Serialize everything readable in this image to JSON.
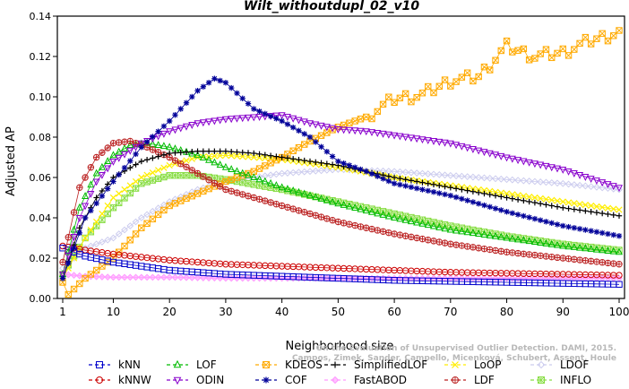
{
  "chart_data": {
    "type": "line",
    "title": "Wilt_withoutdupl_02_v10",
    "xlabel": "Neighborhood size",
    "ylabel": "Adjusted AP",
    "xlim": [
      0,
      100
    ],
    "ylim": [
      0,
      0.14
    ],
    "x_ticks": [
      1,
      10,
      20,
      30,
      40,
      50,
      60,
      70,
      80,
      90,
      100
    ],
    "y_ticks": [
      0.0,
      0.02,
      0.04,
      0.06,
      0.08,
      0.1,
      0.12,
      0.14
    ],
    "y_tick_labels": [
      "0.00",
      "0.02",
      "0.04",
      "0.06",
      "0.08",
      "0.10",
      "0.12",
      "0.14"
    ],
    "x_tick_labels": [
      "1",
      "10",
      "20",
      "30",
      "40",
      "50",
      "60",
      "70",
      "80",
      "90",
      "100"
    ],
    "grid": false,
    "legend_position": "bottom",
    "watermark": "Campos, Zimek, Sander, Campello, Micenková, Schubert, Assent, Houle: On the Evaluation of Unsupervised Outlier Detection. DAMI, 2015.",
    "watermark_lines": [
      "On the Evaluation of Unsupervised Outlier Detection. DAMI, 2015.",
      "Campos, Zimek, Sander, Campello, Micenková, Schubert, Assent, Houle"
    ],
    "series": [
      {
        "name": "kNN",
        "color": "#0000cc",
        "marker": "square",
        "points": [
          [
            1,
            0.025
          ],
          [
            5,
            0.021
          ],
          [
            10,
            0.018
          ],
          [
            20,
            0.014
          ],
          [
            30,
            0.012
          ],
          [
            40,
            0.011
          ],
          [
            50,
            0.01
          ],
          [
            60,
            0.009
          ],
          [
            70,
            0.0085
          ],
          [
            80,
            0.008
          ],
          [
            90,
            0.0075
          ],
          [
            100,
            0.007
          ]
        ]
      },
      {
        "name": "kNNW",
        "color": "#cc0000",
        "marker": "circle",
        "points": [
          [
            1,
            0.026
          ],
          [
            5,
            0.024
          ],
          [
            10,
            0.022
          ],
          [
            20,
            0.019
          ],
          [
            30,
            0.017
          ],
          [
            40,
            0.016
          ],
          [
            50,
            0.015
          ],
          [
            60,
            0.014
          ],
          [
            70,
            0.013
          ],
          [
            80,
            0.0125
          ],
          [
            90,
            0.012
          ],
          [
            100,
            0.0115
          ]
        ]
      },
      {
        "name": "LOF",
        "color": "#00bb00",
        "marker": "triangle-up",
        "points": [
          [
            1,
            0.012
          ],
          [
            4,
            0.045
          ],
          [
            7,
            0.062
          ],
          [
            10,
            0.071
          ],
          [
            13,
            0.076
          ],
          [
            16,
            0.077
          ],
          [
            20,
            0.075
          ],
          [
            25,
            0.071
          ],
          [
            30,
            0.065
          ],
          [
            40,
            0.055
          ],
          [
            50,
            0.047
          ],
          [
            60,
            0.04
          ],
          [
            70,
            0.034
          ],
          [
            80,
            0.03
          ],
          [
            90,
            0.026
          ],
          [
            100,
            0.023
          ]
        ]
      },
      {
        "name": "ODIN",
        "color": "#8800cc",
        "marker": "triangle-down",
        "points": [
          [
            1,
            0.012
          ],
          [
            4,
            0.04
          ],
          [
            7,
            0.058
          ],
          [
            10,
            0.068
          ],
          [
            15,
            0.077
          ],
          [
            20,
            0.083
          ],
          [
            25,
            0.087
          ],
          [
            30,
            0.089
          ],
          [
            35,
            0.09
          ],
          [
            40,
            0.091
          ],
          [
            45,
            0.087
          ],
          [
            50,
            0.084
          ],
          [
            55,
            0.083
          ],
          [
            60,
            0.081
          ],
          [
            70,
            0.077
          ],
          [
            80,
            0.07
          ],
          [
            90,
            0.064
          ],
          [
            100,
            0.055
          ]
        ]
      },
      {
        "name": "KDEOS",
        "color": "#ffaa00",
        "marker": "square-x",
        "points": [
          [
            1,
            0.008
          ],
          [
            2,
            0.002
          ],
          [
            5,
            0.01
          ],
          [
            10,
            0.02
          ],
          [
            15,
            0.035
          ],
          [
            20,
            0.046
          ],
          [
            25,
            0.052
          ],
          [
            30,
            0.058
          ],
          [
            35,
            0.063
          ],
          [
            40,
            0.07
          ],
          [
            45,
            0.078
          ],
          [
            50,
            0.085
          ],
          [
            55,
            0.09
          ],
          [
            60,
            0.099
          ],
          [
            65,
            0.101
          ],
          [
            70,
            0.108
          ],
          [
            75,
            0.11
          ],
          [
            80,
            0.125
          ],
          [
            85,
            0.12
          ],
          [
            90,
            0.122
          ],
          [
            95,
            0.128
          ],
          [
            100,
            0.132
          ]
        ]
      },
      {
        "name": "COF",
        "color": "#000099",
        "marker": "star",
        "points": [
          [
            1,
            0.01
          ],
          [
            5,
            0.04
          ],
          [
            10,
            0.058
          ],
          [
            15,
            0.075
          ],
          [
            20,
            0.088
          ],
          [
            25,
            0.103
          ],
          [
            28,
            0.109
          ],
          [
            30,
            0.107
          ],
          [
            35,
            0.094
          ],
          [
            40,
            0.088
          ],
          [
            45,
            0.08
          ],
          [
            50,
            0.068
          ],
          [
            55,
            0.063
          ],
          [
            60,
            0.057
          ],
          [
            70,
            0.051
          ],
          [
            80,
            0.043
          ],
          [
            90,
            0.036
          ],
          [
            100,
            0.031
          ]
        ]
      },
      {
        "name": "SimplifiedLOF",
        "color": "#000000",
        "marker": "plus",
        "points": [
          [
            1,
            0.01
          ],
          [
            4,
            0.035
          ],
          [
            7,
            0.05
          ],
          [
            10,
            0.06
          ],
          [
            15,
            0.068
          ],
          [
            20,
            0.072
          ],
          [
            25,
            0.073
          ],
          [
            30,
            0.073
          ],
          [
            35,
            0.072
          ],
          [
            40,
            0.07
          ],
          [
            50,
            0.066
          ],
          [
            60,
            0.06
          ],
          [
            70,
            0.055
          ],
          [
            80,
            0.05
          ],
          [
            90,
            0.045
          ],
          [
            100,
            0.041
          ]
        ]
      },
      {
        "name": "FastABOD",
        "color": "#ff99ff",
        "marker": "diamond",
        "points": [
          [
            1,
            0.012
          ],
          [
            5,
            0.011
          ],
          [
            10,
            0.0105
          ],
          [
            20,
            0.0105
          ],
          [
            30,
            0.01
          ],
          [
            40,
            0.01
          ],
          [
            50,
            0.01
          ],
          [
            60,
            0.01
          ],
          [
            70,
            0.01
          ],
          [
            80,
            0.01
          ],
          [
            90,
            0.01
          ],
          [
            100,
            0.01
          ]
        ]
      },
      {
        "name": "LoOP",
        "color": "#ffee00",
        "marker": "x",
        "points": [
          [
            1,
            0.01
          ],
          [
            5,
            0.03
          ],
          [
            10,
            0.05
          ],
          [
            15,
            0.06
          ],
          [
            20,
            0.066
          ],
          [
            25,
            0.07
          ],
          [
            30,
            0.071
          ],
          [
            40,
            0.069
          ],
          [
            50,
            0.065
          ],
          [
            60,
            0.06
          ],
          [
            70,
            0.056
          ],
          [
            80,
            0.052
          ],
          [
            90,
            0.048
          ],
          [
            100,
            0.044
          ]
        ]
      },
      {
        "name": "LDF",
        "color": "#bb2222",
        "marker": "circle-plus",
        "points": [
          [
            1,
            0.018
          ],
          [
            4,
            0.055
          ],
          [
            7,
            0.07
          ],
          [
            10,
            0.077
          ],
          [
            13,
            0.078
          ],
          [
            16,
            0.075
          ],
          [
            20,
            0.07
          ],
          [
            25,
            0.062
          ],
          [
            30,
            0.054
          ],
          [
            40,
            0.046
          ],
          [
            50,
            0.038
          ],
          [
            60,
            0.032
          ],
          [
            70,
            0.027
          ],
          [
            80,
            0.023
          ],
          [
            90,
            0.02
          ],
          [
            100,
            0.017
          ]
        ]
      },
      {
        "name": "LDOF",
        "color": "#ccccee",
        "marker": "diamond-open",
        "points": [
          [
            1,
            0.015
          ],
          [
            5,
            0.025
          ],
          [
            10,
            0.03
          ],
          [
            15,
            0.04
          ],
          [
            20,
            0.048
          ],
          [
            25,
            0.054
          ],
          [
            30,
            0.058
          ],
          [
            40,
            0.062
          ],
          [
            50,
            0.064
          ],
          [
            60,
            0.063
          ],
          [
            70,
            0.061
          ],
          [
            80,
            0.059
          ],
          [
            90,
            0.057
          ],
          [
            100,
            0.054
          ]
        ]
      },
      {
        "name": "INFLO",
        "color": "#88dd44",
        "marker": "square-star",
        "points": [
          [
            1,
            0.012
          ],
          [
            5,
            0.03
          ],
          [
            10,
            0.045
          ],
          [
            15,
            0.057
          ],
          [
            20,
            0.061
          ],
          [
            25,
            0.061
          ],
          [
            30,
            0.059
          ],
          [
            40,
            0.054
          ],
          [
            50,
            0.048
          ],
          [
            60,
            0.042
          ],
          [
            70,
            0.036
          ],
          [
            80,
            0.031
          ],
          [
            90,
            0.027
          ],
          [
            100,
            0.024
          ]
        ]
      }
    ]
  }
}
